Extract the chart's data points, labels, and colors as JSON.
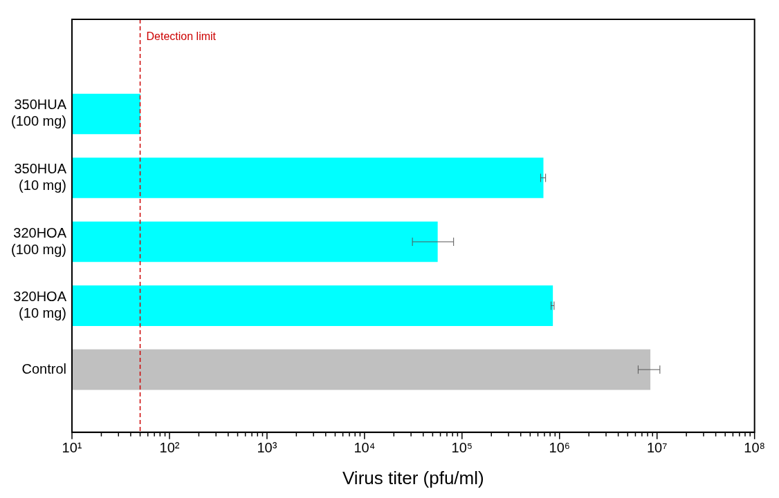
{
  "chart_data": {
    "type": "bar",
    "orientation": "horizontal",
    "xlabel": "Virus titer (pfu/ml)",
    "categories": [
      "350HUA\n(100 mg)",
      "350HUA\n(10 mg)",
      "320HOA\n(100 mg)",
      "320HOA\n(10 mg)",
      "Control"
    ],
    "values": [
      50,
      680000,
      56000,
      850000,
      8500000
    ],
    "colors": [
      "#00ffff",
      "#00ffff",
      "#00ffff",
      "#00ffff",
      "#c0c0c0"
    ],
    "errors": [
      null,
      [
        640000,
        720000
      ],
      [
        31000,
        82000
      ],
      [
        820000,
        880000
      ],
      [
        6400000,
        10700000
      ]
    ],
    "log": "x",
    "xlim": [
      10,
      100000000
    ],
    "xticks": [
      {
        "value": 10,
        "label": "10¹"
      },
      {
        "value": 20,
        "label": null
      },
      {
        "value": 30,
        "label": null
      },
      {
        "value": 40,
        "label": null
      },
      {
        "value": 50,
        "label": null
      },
      {
        "value": 60,
        "label": null
      },
      {
        "value": 70,
        "label": null
      },
      {
        "value": 80,
        "label": null
      },
      {
        "value": 90,
        "label": null
      },
      {
        "value": 100,
        "label": "10²"
      },
      {
        "value": 200,
        "label": null
      },
      {
        "value": 300,
        "label": null
      },
      {
        "value": 400,
        "label": null
      },
      {
        "value": 500,
        "label": null
      },
      {
        "value": 600,
        "label": null
      },
      {
        "value": 700,
        "label": null
      },
      {
        "value": 800,
        "label": null
      },
      {
        "value": 900,
        "label": null
      },
      {
        "value": 1000,
        "label": "10³"
      },
      {
        "value": 2000,
        "label": null
      },
      {
        "value": 3000,
        "label": null
      },
      {
        "value": 4000,
        "label": null
      },
      {
        "value": 5000,
        "label": null
      },
      {
        "value": 6000,
        "label": null
      },
      {
        "value": 7000,
        "label": null
      },
      {
        "value": 8000,
        "label": null
      },
      {
        "value": 9000,
        "label": null
      },
      {
        "value": 10000,
        "label": "10⁴"
      },
      {
        "value": 20000,
        "label": null
      },
      {
        "value": 30000,
        "label": null
      },
      {
        "value": 40000,
        "label": null
      },
      {
        "value": 50000,
        "label": null
      },
      {
        "value": 60000,
        "label": null
      },
      {
        "value": 70000,
        "label": null
      },
      {
        "value": 80000,
        "label": null
      },
      {
        "value": 90000,
        "label": null
      },
      {
        "value": 100000,
        "label": "10⁵"
      },
      {
        "value": 200000,
        "label": null
      },
      {
        "value": 300000,
        "label": null
      },
      {
        "value": 400000,
        "label": null
      },
      {
        "value": 500000,
        "label": null
      },
      {
        "value": 600000,
        "label": null
      },
      {
        "value": 700000,
        "label": null
      },
      {
        "value": 800000,
        "label": null
      },
      {
        "value": 900000,
        "label": null
      },
      {
        "value": 1000000,
        "label": "10⁶"
      },
      {
        "value": 2000000,
        "label": null
      },
      {
        "value": 3000000,
        "label": null
      },
      {
        "value": 4000000,
        "label": null
      },
      {
        "value": 5000000,
        "label": null
      },
      {
        "value": 6000000,
        "label": null
      },
      {
        "value": 7000000,
        "label": null
      },
      {
        "value": 8000000,
        "label": null
      },
      {
        "value": 9000000,
        "label": null
      },
      {
        "value": 10000000,
        "label": "10⁷"
      },
      {
        "value": 20000000,
        "label": null
      },
      {
        "value": 30000000,
        "label": null
      },
      {
        "value": 40000000,
        "label": null
      },
      {
        "value": 50000000,
        "label": null
      },
      {
        "value": 60000000,
        "label": null
      },
      {
        "value": 70000000,
        "label": null
      },
      {
        "value": 80000000,
        "label": null
      },
      {
        "value": 90000000,
        "label": null
      },
      {
        "value": 100000000,
        "label": "10⁸"
      }
    ],
    "ref_lines": [
      {
        "axis": "x",
        "value": 50,
        "label": "Detection limit",
        "color": "#cc0000",
        "line_style": "dashed"
      }
    ],
    "grid": false,
    "legend": false
  }
}
